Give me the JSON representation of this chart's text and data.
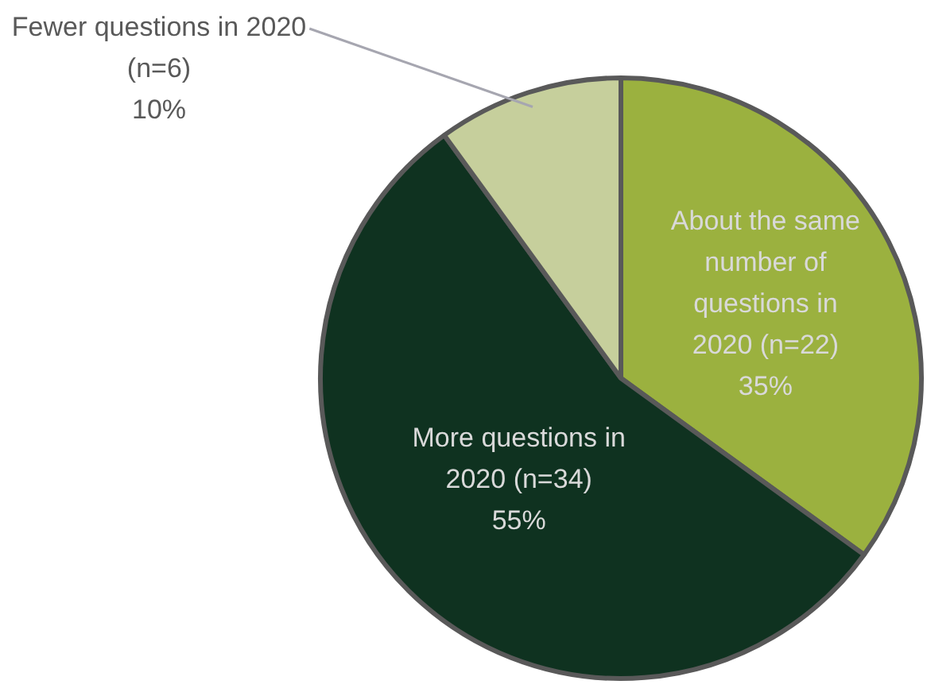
{
  "chart_data": {
    "type": "pie",
    "categories": [
      "About the same number of questions in 2020 (n=22)",
      "More questions in 2020 (n=34)",
      "Fewer questions in 2020 (n=6)"
    ],
    "values": [
      35,
      55,
      10
    ],
    "value_labels": [
      "35%",
      "55%",
      "10%"
    ],
    "colors": [
      "#9bb13f",
      "#0f3220",
      "#c6cf9c"
    ],
    "legend": false
  }
}
